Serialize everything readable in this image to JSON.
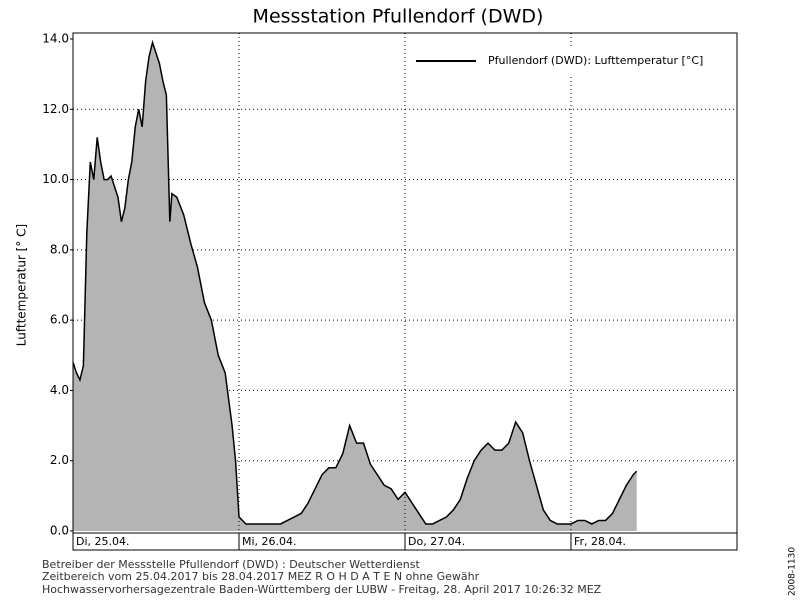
{
  "chart_data": {
    "type": "area",
    "title": "Messstation Pfullendorf (DWD)",
    "y_label": "Lufttemperatur [° C]",
    "xlim": [
      0,
      96
    ],
    "xticks": [
      {
        "value": 0,
        "label": "Di, 25.04."
      },
      {
        "value": 24,
        "label": "Mi, 26.04."
      },
      {
        "value": 48,
        "label": "Do, 27.04."
      },
      {
        "value": 72,
        "label": "Fr, 28.04."
      }
    ],
    "ylim": [
      0,
      14
    ],
    "yticks": [
      {
        "value": 0,
        "label": "0.0"
      },
      {
        "value": 2,
        "label": "2.0"
      },
      {
        "value": 4,
        "label": "4.0"
      },
      {
        "value": 6,
        "label": "6.0"
      },
      {
        "value": 8,
        "label": "8.0"
      },
      {
        "value": 10,
        "label": "10.0"
      },
      {
        "value": 12,
        "label": "12.0"
      },
      {
        "value": 14,
        "label": "14.0"
      }
    ],
    "grid": true,
    "legend": "top-right",
    "series": [
      {
        "name": "Pfullendorf (DWD): Lufttemperatur [°C]",
        "color": "#000000",
        "fill": "#b4b4b4",
        "x": [
          0,
          0.5,
          1,
          1.5,
          2,
          2.5,
          3,
          3.5,
          4,
          4.5,
          5,
          5.5,
          6,
          6.5,
          7,
          7.5,
          8,
          8.5,
          9,
          9.5,
          10,
          10.5,
          11,
          11.5,
          12,
          12.5,
          13,
          13.5,
          14,
          14.3,
          15,
          16,
          17,
          18,
          19,
          20,
          21,
          22,
          23,
          23.5,
          24,
          25,
          26,
          27,
          28,
          29,
          30,
          31,
          32,
          33,
          34,
          35,
          36,
          37,
          38,
          39,
          40,
          41,
          42,
          43,
          44,
          45,
          46,
          47,
          48,
          49,
          50,
          51,
          52,
          53,
          54,
          55,
          56,
          57,
          58,
          59,
          60,
          61,
          62,
          63,
          64,
          65,
          66,
          67,
          68,
          69,
          70,
          71,
          72,
          73,
          74,
          75,
          76,
          77,
          78,
          79,
          80,
          81,
          81.5
        ],
        "values": [
          4.8,
          4.5,
          4.3,
          4.7,
          8.5,
          10.5,
          10.0,
          11.2,
          10.5,
          10.0,
          10.0,
          10.1,
          9.8,
          9.5,
          8.8,
          9.2,
          10.0,
          10.5,
          11.5,
          12.0,
          11.5,
          12.8,
          13.5,
          13.9,
          13.6,
          13.3,
          12.8,
          12.4,
          8.8,
          9.6,
          9.5,
          9.0,
          8.2,
          7.5,
          6.5,
          6.0,
          5.0,
          4.5,
          3.0,
          2.0,
          0.4,
          0.2,
          0.2,
          0.2,
          0.2,
          0.2,
          0.2,
          0.3,
          0.4,
          0.5,
          0.8,
          1.2,
          1.6,
          1.8,
          1.8,
          2.2,
          3.0,
          2.5,
          2.5,
          1.9,
          1.6,
          1.3,
          1.2,
          0.9,
          1.1,
          0.8,
          0.5,
          0.2,
          0.2,
          0.3,
          0.4,
          0.6,
          0.9,
          1.5,
          2.0,
          2.3,
          2.5,
          2.3,
          2.3,
          2.5,
          3.1,
          2.8,
          2.0,
          1.3,
          0.6,
          0.3,
          0.2,
          0.2,
          0.2,
          0.3,
          0.3,
          0.2,
          0.3,
          0.3,
          0.5,
          0.9,
          1.3,
          1.6,
          1.7
        ]
      }
    ]
  },
  "footer": [
    "Betreiber der Messstelle Pfullendorf (DWD) : Deutscher Wetterdienst",
    "Zeitbereich vom 25.04.2017 bis 28.04.2017    MEZ    R O H D A T E N ohne Gewähr",
    "Hochwasservorhersagezentrale Baden-Württemberg der LUBW - Freitag, 28. April 2017 10:26:32 MEZ"
  ],
  "side_label": "2008-1130"
}
